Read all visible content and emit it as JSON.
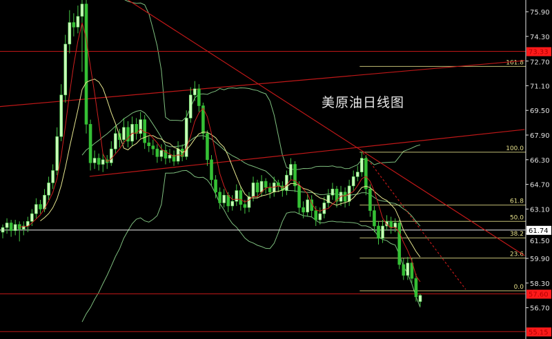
{
  "chart_data": {
    "type": "candlestick",
    "title": "美原油日线图",
    "ylim": [
      54.9,
      76.66
    ],
    "y_ticks": [
      "75.90",
      "74.30",
      "72.70",
      "71.10",
      "69.50",
      "67.90",
      "66.30",
      "64.70",
      "63.10",
      "61.50",
      "59.90",
      "58.30",
      "56.70"
    ],
    "price_tags": [
      {
        "label": "73.33",
        "value": 73.33,
        "color": "#ff1a1a",
        "kind": "red"
      },
      {
        "label": "61.74",
        "value": 61.74,
        "color": "#ffffff",
        "kind": "white"
      },
      {
        "label": "57.60",
        "value": 57.6,
        "color": "#ff1a1a",
        "kind": "red"
      },
      {
        "label": "55.15",
        "value": 55.15,
        "color": "#ff1a1a",
        "kind": "red"
      }
    ],
    "fibonacci": {
      "start_index": 86,
      "levels": [
        {
          "label": "161.8",
          "value": 72.35
        },
        {
          "label": "100.0",
          "value": 66.79
        },
        {
          "label": "61.8",
          "value": 63.36
        },
        {
          "label": "50.0",
          "value": 62.3
        },
        {
          "label": "38.2",
          "value": 61.23
        },
        {
          "label": "23.6",
          "value": 59.92
        },
        {
          "label": "0.0",
          "value": 57.8
        }
      ],
      "color": "#e6e08a"
    },
    "trend_lines": [
      {
        "from": [
          -1,
          69.74
        ],
        "to": [
          125,
          72.73
        ],
        "style": "solid"
      },
      {
        "from": [
          20.8,
          65.22
        ],
        "to": [
          125,
          68.26
        ],
        "style": "solid"
      },
      {
        "from": [
          30,
          76.66
        ],
        "to": [
          125,
          60.08
        ],
        "style": "solid"
      },
      {
        "from": [
          86.3,
          66.74
        ],
        "to": [
          110.9,
          57.89
        ],
        "style": "dotted"
      }
    ],
    "indicators": {
      "ma_fast": 5,
      "ma_slow": 10,
      "bollinger": 20
    },
    "colors": {
      "up": "#c8ffb8",
      "down": "#35c035",
      "ma_fast": "#d02020",
      "ma_slow": "#e8e890",
      "bands": "#7fbf7f",
      "lines": "#c01818"
    },
    "ohlc": [
      [
        61.6,
        62.1,
        61.2,
        61.9
      ],
      [
        61.9,
        62.5,
        61.5,
        62.2
      ],
      [
        62.2,
        62.4,
        61.3,
        61.7
      ],
      [
        61.7,
        62.4,
        61.4,
        62.1
      ],
      [
        62.1,
        62.3,
        61.0,
        61.8
      ],
      [
        61.8,
        62.3,
        61.4,
        62.0
      ],
      [
        62.0,
        62.6,
        61.6,
        62.3
      ],
      [
        62.3,
        63.1,
        62.0,
        62.8
      ],
      [
        62.8,
        63.8,
        62.5,
        63.4
      ],
      [
        63.4,
        63.7,
        62.8,
        63.1
      ],
      [
        63.1,
        64.4,
        62.9,
        64.0
      ],
      [
        64.0,
        65.2,
        63.7,
        64.8
      ],
      [
        64.8,
        66.0,
        64.4,
        65.6
      ],
      [
        65.6,
        68.4,
        65.3,
        67.8
      ],
      [
        67.8,
        71.2,
        67.5,
        70.5
      ],
      [
        70.5,
        74.4,
        70.0,
        73.8
      ],
      [
        73.8,
        76.0,
        73.2,
        75.2
      ],
      [
        75.2,
        75.8,
        74.3,
        74.9
      ],
      [
        74.9,
        76.3,
        74.5,
        75.6
      ],
      [
        75.6,
        77.0,
        72.0,
        76.4
      ],
      [
        76.4,
        76.8,
        68.0,
        68.6
      ],
      [
        68.6,
        68.9,
        65.6,
        66.1
      ],
      [
        66.1,
        66.9,
        65.7,
        66.4
      ],
      [
        66.4,
        66.7,
        65.6,
        66.0
      ],
      [
        66.0,
        66.7,
        65.5,
        66.3
      ],
      [
        66.3,
        66.6,
        65.7,
        66.1
      ],
      [
        66.1,
        67.5,
        65.9,
        67.0
      ],
      [
        67.0,
        68.5,
        66.7,
        68.0
      ],
      [
        68.0,
        68.3,
        67.1,
        67.6
      ],
      [
        67.6,
        69.0,
        67.3,
        68.4
      ],
      [
        68.4,
        68.8,
        67.1,
        67.5
      ],
      [
        67.5,
        69.1,
        67.2,
        68.6
      ],
      [
        68.6,
        69.0,
        67.6,
        68.0
      ],
      [
        68.0,
        69.4,
        67.7,
        68.9
      ],
      [
        68.9,
        69.2,
        67.0,
        67.4
      ],
      [
        67.4,
        67.8,
        66.8,
        67.2
      ],
      [
        67.2,
        67.6,
        66.6,
        67.0
      ],
      [
        67.0,
        67.3,
        66.1,
        66.5
      ],
      [
        66.5,
        67.3,
        66.2,
        66.9
      ],
      [
        66.9,
        67.2,
        66.0,
        66.4
      ],
      [
        66.4,
        67.0,
        66.1,
        66.6
      ],
      [
        66.6,
        66.9,
        65.9,
        66.2
      ],
      [
        66.2,
        67.5,
        66.0,
        67.0
      ],
      [
        67.0,
        67.3,
        66.2,
        66.5
      ],
      [
        66.5,
        69.5,
        66.3,
        69.0
      ],
      [
        69.0,
        71.0,
        68.7,
        70.5
      ],
      [
        70.5,
        71.4,
        70.1,
        70.9
      ],
      [
        70.9,
        71.2,
        69.4,
        69.8
      ],
      [
        69.8,
        70.0,
        67.6,
        68.0
      ],
      [
        68.0,
        68.2,
        65.9,
        66.3
      ],
      [
        66.3,
        66.6,
        64.6,
        65.0
      ],
      [
        65.0,
        65.3,
        63.8,
        64.2
      ],
      [
        64.2,
        64.5,
        63.1,
        63.5
      ],
      [
        63.5,
        64.4,
        63.2,
        64.0
      ],
      [
        64.0,
        64.2,
        62.9,
        63.3
      ],
      [
        63.3,
        64.0,
        63.0,
        63.6
      ],
      [
        63.6,
        64.7,
        63.3,
        64.3
      ],
      [
        64.3,
        64.6,
        63.0,
        63.4
      ],
      [
        63.4,
        63.7,
        62.8,
        63.2
      ],
      [
        63.2,
        64.2,
        62.9,
        63.9
      ],
      [
        63.9,
        65.2,
        63.6,
        64.8
      ],
      [
        64.8,
        65.0,
        63.8,
        64.2
      ],
      [
        64.2,
        65.3,
        63.9,
        64.9
      ],
      [
        64.9,
        65.1,
        64.1,
        64.5
      ],
      [
        64.5,
        64.8,
        63.8,
        64.2
      ],
      [
        64.2,
        65.2,
        63.9,
        64.8
      ],
      [
        64.8,
        65.0,
        64.2,
        64.6
      ],
      [
        64.6,
        64.9,
        63.9,
        64.3
      ],
      [
        64.3,
        65.6,
        64.0,
        65.3
      ],
      [
        65.3,
        66.4,
        65.0,
        66.0
      ],
      [
        66.0,
        66.2,
        64.2,
        64.6
      ],
      [
        64.6,
        64.9,
        62.8,
        63.2
      ],
      [
        63.2,
        63.6,
        62.5,
        62.9
      ],
      [
        62.9,
        64.1,
        62.6,
        63.7
      ],
      [
        63.7,
        64.0,
        62.6,
        63.0
      ],
      [
        63.0,
        63.3,
        62.0,
        62.4
      ],
      [
        62.4,
        63.2,
        62.1,
        62.8
      ],
      [
        62.8,
        63.9,
        62.5,
        63.5
      ],
      [
        63.5,
        64.4,
        63.2,
        64.0
      ],
      [
        64.0,
        64.8,
        63.7,
        64.4
      ],
      [
        64.4,
        64.6,
        63.2,
        63.6
      ],
      [
        63.6,
        64.6,
        63.3,
        64.2
      ],
      [
        64.2,
        64.5,
        63.2,
        63.6
      ],
      [
        63.6,
        65.0,
        63.3,
        64.6
      ],
      [
        64.6,
        65.6,
        64.3,
        65.2
      ],
      [
        65.2,
        65.9,
        64.9,
        65.5
      ],
      [
        65.5,
        66.8,
        65.2,
        66.4
      ],
      [
        66.4,
        66.6,
        64.0,
        64.4
      ],
      [
        64.4,
        64.7,
        62.6,
        63.0
      ],
      [
        63.0,
        63.3,
        61.6,
        62.0
      ],
      [
        62.0,
        62.3,
        60.8,
        61.2
      ],
      [
        61.2,
        62.4,
        60.9,
        62.0
      ],
      [
        62.0,
        62.7,
        61.7,
        62.3
      ],
      [
        62.3,
        62.6,
        61.5,
        61.9
      ],
      [
        61.9,
        62.5,
        61.6,
        62.2
      ],
      [
        62.2,
        62.4,
        59.2,
        59.5
      ],
      [
        59.5,
        59.9,
        58.5,
        58.8
      ],
      [
        58.8,
        60.0,
        58.5,
        59.6
      ],
      [
        59.6,
        59.9,
        58.3,
        58.6
      ],
      [
        58.6,
        58.9,
        57.1,
        57.4
      ],
      [
        57.1,
        57.6,
        56.8,
        57.5
      ]
    ]
  }
}
